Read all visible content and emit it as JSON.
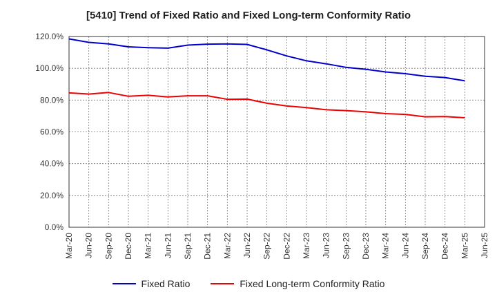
{
  "chart_data": {
    "type": "line",
    "title": "[5410]  Trend of Fixed Ratio and Fixed Long-term Conformity Ratio",
    "xlabel": "",
    "ylabel": "",
    "x": [
      "Mar-20",
      "Jun-20",
      "Sep-20",
      "Dec-20",
      "Mar-21",
      "Jun-21",
      "Sep-21",
      "Dec-21",
      "Mar-22",
      "Jun-22",
      "Sep-22",
      "Dec-22",
      "Mar-23",
      "Jun-23",
      "Sep-23",
      "Dec-23",
      "Mar-24",
      "Jun-24",
      "Sep-24",
      "Dec-24",
      "Mar-25",
      "Jun-25"
    ],
    "ylim": [
      0,
      120
    ],
    "yticks": [
      "0.0%",
      "20.0%",
      "40.0%",
      "60.0%",
      "80.0%",
      "100.0%",
      "120.0%"
    ],
    "grid": true,
    "legend_position": "bottom",
    "series": [
      {
        "name": "Fixed Ratio",
        "color": "#0000cc",
        "values": [
          118.5,
          116.3,
          115.3,
          113.5,
          113.0,
          112.7,
          114.6,
          115.2,
          115.3,
          115.0,
          111.6,
          107.8,
          104.7,
          102.8,
          100.6,
          99.4,
          97.7,
          96.6,
          95.0,
          94.2,
          92.1,
          null
        ]
      },
      {
        "name": "Fixed Long-term Conformity Ratio",
        "color": "#ee0000",
        "values": [
          84.5,
          83.8,
          84.8,
          82.4,
          83.0,
          82.0,
          82.7,
          82.7,
          80.5,
          80.6,
          78.0,
          76.3,
          75.3,
          73.9,
          73.4,
          72.6,
          71.5,
          71.0,
          69.5,
          69.6,
          68.9,
          null
        ]
      }
    ]
  }
}
